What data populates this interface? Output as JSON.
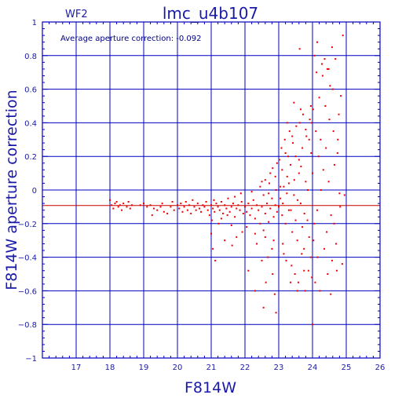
{
  "chart_data": {
    "type": "scatter",
    "title": "lmc_u4b107",
    "subtitle": "WF2",
    "annotation": "Average aperture correction: -0.092",
    "xlabel": "F814W",
    "ylabel": "F814W aperture correction",
    "xlim": [
      16,
      26
    ],
    "ylim": [
      -1,
      1
    ],
    "xticks": [
      "17",
      "18",
      "19",
      "20",
      "21",
      "22",
      "23",
      "24",
      "25",
      "26"
    ],
    "yticks": [
      "1",
      "0.8",
      "0.6",
      "0.4",
      "0.2",
      "0",
      "−0.2",
      "−0.4",
      "−0.6",
      "−0.8",
      "−1"
    ],
    "grid": true,
    "colors": {
      "axes": "#0000c0",
      "points": "#ee0000",
      "text": "#1a1aa8"
    },
    "reference_line": {
      "y": -0.092,
      "color": "#cc0000"
    },
    "series": [
      {
        "values": [
          [
            18.0,
            -0.06
          ],
          [
            18.05,
            -0.09
          ],
          [
            18.1,
            -0.11
          ],
          [
            18.15,
            -0.08
          ],
          [
            18.2,
            -0.07
          ],
          [
            18.25,
            -0.1
          ],
          [
            18.3,
            -0.09
          ],
          [
            18.35,
            -0.12
          ],
          [
            18.4,
            -0.08
          ],
          [
            18.5,
            -0.1
          ],
          [
            18.55,
            -0.07
          ],
          [
            18.6,
            -0.11
          ],
          [
            18.65,
            -0.09
          ],
          [
            18.9,
            -0.09
          ],
          [
            19.0,
            -0.08
          ],
          [
            19.1,
            -0.1
          ],
          [
            19.2,
            -0.09
          ],
          [
            19.25,
            -0.15
          ],
          [
            19.3,
            -0.11
          ],
          [
            19.4,
            -0.12
          ],
          [
            19.5,
            -0.1
          ],
          [
            19.55,
            -0.08
          ],
          [
            19.6,
            -0.13
          ],
          [
            19.7,
            -0.14
          ],
          [
            19.8,
            -0.1
          ],
          [
            19.85,
            -0.07
          ],
          [
            19.9,
            -0.12
          ],
          [
            20.0,
            -0.09
          ],
          [
            20.05,
            -0.11
          ],
          [
            20.1,
            -0.08
          ],
          [
            20.15,
            -0.13
          ],
          [
            20.2,
            -0.1
          ],
          [
            20.25,
            -0.07
          ],
          [
            20.3,
            -0.12
          ],
          [
            20.35,
            -0.09
          ],
          [
            20.4,
            -0.14
          ],
          [
            20.45,
            -0.06
          ],
          [
            20.5,
            -0.1
          ],
          [
            20.55,
            -0.12
          ],
          [
            20.6,
            -0.08
          ],
          [
            20.65,
            -0.11
          ],
          [
            20.7,
            -0.13
          ],
          [
            20.75,
            -0.09
          ],
          [
            20.8,
            -0.1
          ],
          [
            20.85,
            -0.07
          ],
          [
            20.9,
            -0.12
          ],
          [
            20.95,
            -0.15
          ],
          [
            21.0,
            -0.09
          ],
          [
            21.05,
            -0.11
          ],
          [
            21.08,
            -0.06
          ],
          [
            21.1,
            -0.13
          ],
          [
            21.15,
            -0.08
          ],
          [
            21.2,
            -0.1
          ],
          [
            21.25,
            -0.12
          ],
          [
            21.3,
            -0.07
          ],
          [
            21.35,
            -0.14
          ],
          [
            21.4,
            -0.09
          ],
          [
            21.45,
            -0.11
          ],
          [
            21.5,
            -0.05
          ],
          [
            21.55,
            -0.13
          ],
          [
            21.6,
            -0.1
          ],
          [
            21.65,
            -0.08
          ],
          [
            21.7,
            -0.16
          ],
          [
            21.75,
            -0.11
          ],
          [
            21.8,
            -0.09
          ],
          [
            21.85,
            -0.12
          ],
          [
            21.9,
            -0.07
          ],
          [
            21.95,
            -0.14
          ],
          [
            21.02,
            -0.18
          ],
          [
            21.22,
            -0.2
          ],
          [
            21.48,
            -0.15
          ],
          [
            21.7,
            -0.04
          ],
          [
            21.88,
            -0.02
          ],
          [
            21.6,
            -0.21
          ],
          [
            21.3,
            -0.17
          ],
          [
            22.0,
            -0.1
          ],
          [
            22.05,
            -0.13
          ],
          [
            22.1,
            -0.08
          ],
          [
            22.15,
            -0.15
          ],
          [
            22.2,
            -0.11
          ],
          [
            22.25,
            -0.06
          ],
          [
            22.3,
            -0.17
          ],
          [
            22.35,
            -0.09
          ],
          [
            22.4,
            -0.12
          ],
          [
            22.45,
            -0.2
          ],
          [
            22.5,
            -0.1
          ],
          [
            22.55,
            -0.03
          ],
          [
            22.6,
            -0.14
          ],
          [
            22.65,
            -0.08
          ],
          [
            22.7,
            -0.19
          ],
          [
            22.75,
            -0.11
          ],
          [
            22.8,
            -0.05
          ],
          [
            22.85,
            -0.16
          ],
          [
            22.9,
            -0.09
          ],
          [
            22.95,
            -0.13
          ],
          [
            22.05,
            -0.22
          ],
          [
            22.2,
            -0.01
          ],
          [
            22.3,
            -0.26
          ],
          [
            22.45,
            0.02
          ],
          [
            22.6,
            -0.28
          ],
          [
            22.72,
            0.04
          ],
          [
            22.85,
            -0.3
          ],
          [
            22.92,
            0.0
          ],
          [
            22.35,
            -0.32
          ],
          [
            22.55,
            -0.24
          ],
          [
            22.8,
            -0.35
          ],
          [
            22.68,
            -0.4
          ],
          [
            21.92,
            -0.25
          ],
          [
            21.75,
            -0.28
          ],
          [
            21.62,
            -0.33
          ],
          [
            21.4,
            -0.3
          ],
          [
            21.05,
            -0.35
          ],
          [
            21.12,
            -0.42
          ],
          [
            21.0,
            -0.26
          ],
          [
            22.1,
            -0.48
          ],
          [
            22.3,
            -0.6
          ],
          [
            22.5,
            -0.42
          ],
          [
            22.62,
            -0.55
          ],
          [
            22.82,
            -0.5
          ],
          [
            22.88,
            -0.62
          ],
          [
            22.55,
            -0.7
          ],
          [
            22.92,
            -0.73
          ],
          [
            22.6,
            0.06
          ],
          [
            22.75,
            0.1
          ],
          [
            22.82,
            0.13
          ],
          [
            22.9,
            0.08
          ],
          [
            22.95,
            0.16
          ],
          [
            22.7,
            -0.02
          ],
          [
            22.5,
            0.05
          ],
          [
            23.0,
            -0.1
          ],
          [
            23.05,
            -0.05
          ],
          [
            23.1,
            -0.15
          ],
          [
            23.15,
            0.02
          ],
          [
            23.2,
            -0.2
          ],
          [
            23.25,
            0.08
          ],
          [
            23.3,
            -0.12
          ],
          [
            23.35,
            0.15
          ],
          [
            23.4,
            -0.25
          ],
          [
            23.45,
            -0.03
          ],
          [
            23.5,
            0.2
          ],
          [
            23.55,
            -0.3
          ],
          [
            23.6,
            0.1
          ],
          [
            23.65,
            -0.08
          ],
          [
            23.7,
            0.25
          ],
          [
            23.75,
            -0.35
          ],
          [
            23.8,
            0.05
          ],
          [
            23.85,
            -0.18
          ],
          [
            23.9,
            0.3
          ],
          [
            23.95,
            -0.4
          ],
          [
            23.02,
            0.18
          ],
          [
            23.08,
            0.25
          ],
          [
            23.12,
            -0.32
          ],
          [
            23.18,
            0.3
          ],
          [
            23.22,
            -0.42
          ],
          [
            23.28,
            0.2
          ],
          [
            23.32,
            0.35
          ],
          [
            23.38,
            -0.45
          ],
          [
            23.42,
            0.28
          ],
          [
            23.48,
            -0.5
          ],
          [
            23.52,
            0.38
          ],
          [
            23.58,
            -0.55
          ],
          [
            23.62,
            0.4
          ],
          [
            23.68,
            -0.38
          ],
          [
            23.72,
            0.45
          ],
          [
            23.78,
            -0.6
          ],
          [
            23.82,
            0.32
          ],
          [
            23.88,
            -0.48
          ],
          [
            23.92,
            0.42
          ],
          [
            23.98,
            -0.52
          ],
          [
            23.1,
            0.12
          ],
          [
            23.2,
            0.22
          ],
          [
            23.3,
            0.04
          ],
          [
            23.4,
            0.32
          ],
          [
            23.5,
            -0.18
          ],
          [
            23.6,
            0.18
          ],
          [
            23.7,
            -0.22
          ],
          [
            23.8,
            0.36
          ],
          [
            23.9,
            -0.28
          ],
          [
            23.15,
            -0.38
          ],
          [
            23.35,
            -0.55
          ],
          [
            23.55,
            -0.6
          ],
          [
            23.75,
            -0.48
          ],
          [
            23.95,
            0.5
          ],
          [
            23.45,
            0.52
          ],
          [
            23.65,
            0.48
          ],
          [
            23.25,
            0.4
          ],
          [
            23.05,
            0.02
          ],
          [
            23.12,
            -0.08
          ],
          [
            23.24,
            -0.02
          ],
          [
            23.36,
            -0.12
          ],
          [
            23.46,
            0.06
          ],
          [
            23.56,
            -0.06
          ],
          [
            23.66,
            0.14
          ],
          [
            23.76,
            -0.14
          ],
          [
            23.86,
            0.0
          ],
          [
            23.96,
            0.22
          ],
          [
            24.0,
            0.1
          ],
          [
            24.05,
            -0.2
          ],
          [
            24.1,
            0.35
          ],
          [
            24.15,
            -0.4
          ],
          [
            24.2,
            0.55
          ],
          [
            24.25,
            0.0
          ],
          [
            24.3,
            0.68
          ],
          [
            24.35,
            -0.35
          ],
          [
            24.4,
            0.25
          ],
          [
            24.45,
            -0.5
          ],
          [
            24.5,
            0.42
          ],
          [
            24.55,
            -0.15
          ],
          [
            24.6,
            0.6
          ],
          [
            24.65,
            0.15
          ],
          [
            24.7,
            -0.32
          ],
          [
            24.75,
            0.3
          ],
          [
            24.8,
            -0.02
          ],
          [
            24.02,
            0.48
          ],
          [
            24.08,
            -0.55
          ],
          [
            24.12,
            0.7
          ],
          [
            24.18,
            0.2
          ],
          [
            24.22,
            -0.6
          ],
          [
            24.28,
            0.75
          ],
          [
            24.38,
            0.5
          ],
          [
            24.42,
            -0.25
          ],
          [
            24.48,
            0.05
          ],
          [
            24.52,
            0.62
          ],
          [
            24.58,
            -0.42
          ],
          [
            24.62,
            0.35
          ],
          [
            24.68,
            0.78
          ],
          [
            24.72,
            -0.48
          ],
          [
            24.78,
            0.45
          ],
          [
            24.82,
            -0.1
          ],
          [
            23.98,
            0.4
          ],
          [
            24.03,
            -0.3
          ],
          [
            24.06,
            0.8
          ],
          [
            24.14,
            -0.12
          ],
          [
            24.24,
            0.3
          ],
          [
            24.32,
            0.12
          ],
          [
            24.44,
            0.72
          ],
          [
            24.54,
            -0.62
          ],
          [
            24.64,
            -0.2
          ],
          [
            24.74,
            0.22
          ],
          [
            24.84,
            0.56
          ],
          [
            24.9,
            0.92
          ],
          [
            24.88,
            -0.44
          ],
          [
            24.95,
            -0.03
          ],
          [
            24.0,
            -0.8
          ],
          [
            23.62,
            0.84
          ],
          [
            24.58,
            0.85
          ],
          [
            24.48,
            0.72
          ],
          [
            24.36,
            0.78
          ],
          [
            24.14,
            0.88
          ]
        ]
      }
    ]
  }
}
